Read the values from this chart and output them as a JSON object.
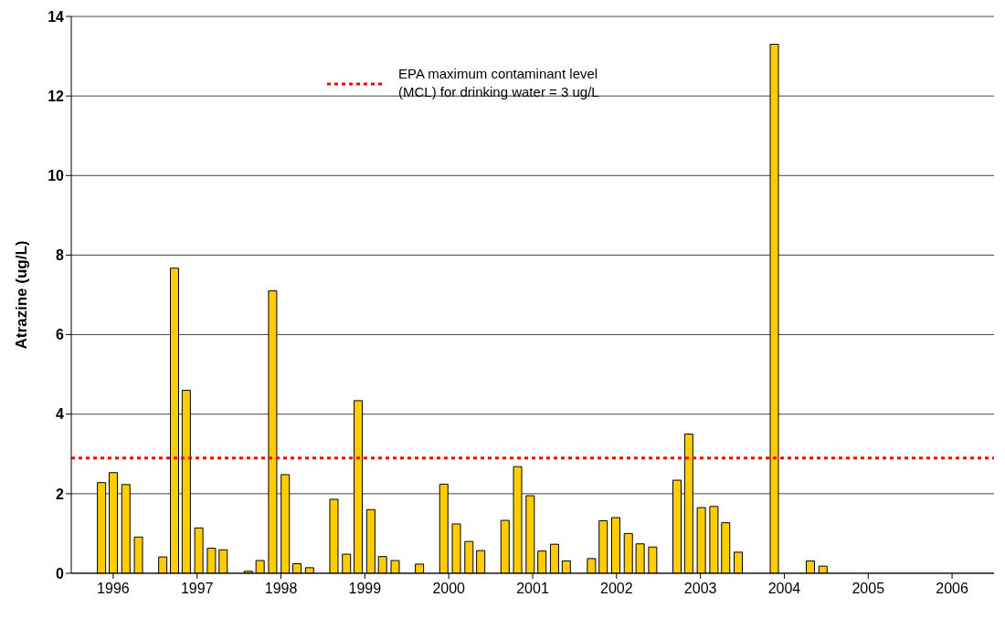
{
  "chart_data": {
    "type": "bar",
    "ylabel": "Atrazine (ug/L)",
    "x": [
      1995.86,
      1996.0,
      1996.15,
      1996.3,
      1996.59,
      1996.73,
      1996.87,
      1997.02,
      1997.17,
      1997.31,
      1997.61,
      1997.75,
      1997.9,
      1998.05,
      1998.19,
      1998.34,
      1998.63,
      1998.78,
      1998.92,
      1999.07,
      1999.21,
      1999.36,
      1999.65,
      1999.94,
      2000.09,
      2000.24,
      2000.38,
      2000.67,
      2000.82,
      2000.97,
      2001.11,
      2001.26,
      2001.4,
      2001.7,
      2001.84,
      2001.99,
      2002.14,
      2002.28,
      2002.43,
      2002.72,
      2002.86,
      2003.01,
      2003.16,
      2003.3,
      2003.45,
      2003.88,
      2004.31,
      2004.46
    ],
    "values": [
      2.28,
      2.53,
      2.23,
      0.91,
      0.41,
      7.67,
      4.6,
      1.14,
      0.63,
      0.59,
      0.05,
      0.32,
      7.1,
      2.48,
      0.24,
      0.14,
      1.86,
      0.48,
      4.34,
      1.6,
      0.42,
      0.32,
      0.23,
      2.24,
      1.24,
      0.8,
      0.57,
      1.33,
      2.68,
      1.95,
      0.56,
      0.73,
      0.31,
      0.37,
      1.32,
      1.4,
      1.0,
      0.74,
      0.66,
      2.34,
      3.5,
      1.65,
      1.68,
      1.27,
      0.53,
      13.3,
      0.31,
      0.18
    ],
    "color": "#ffcc00",
    "xlim": [
      1995.5,
      2006.5
    ],
    "xticks": [
      1996,
      1997,
      1998,
      1999,
      2000,
      2001,
      2002,
      2003,
      2004,
      2005,
      2006
    ],
    "ylim": [
      0,
      14
    ],
    "yticks": [
      0,
      2,
      4,
      6,
      8,
      10,
      12,
      14
    ],
    "grid": "y",
    "ref_lines": [
      {
        "axis": "y",
        "value": 2.9,
        "label": "EPA maximum contaminant level (MCL) for drinking water = 3 ug/L",
        "color": "#ff0000",
        "line_style": "dotted"
      }
    ]
  }
}
